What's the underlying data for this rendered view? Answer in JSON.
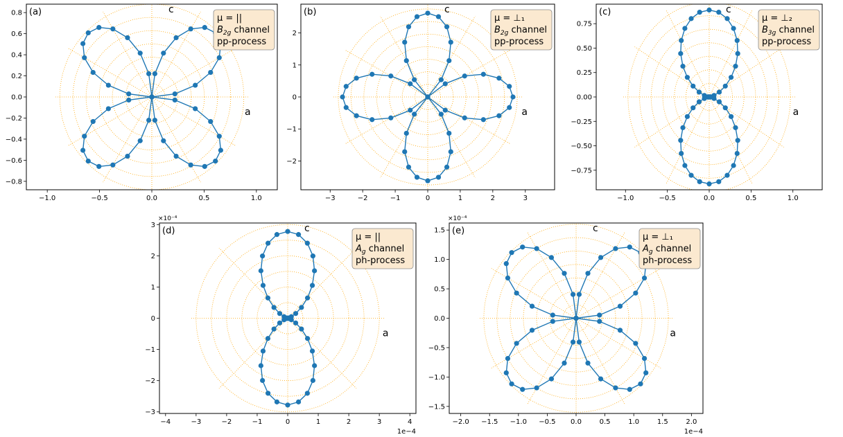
{
  "chart_data": [
    {
      "panel": "(a)",
      "type": "scatter",
      "mode": "polar-pattern",
      "xlim": [
        -1.2,
        1.2
      ],
      "ylim": [
        -0.88,
        0.88
      ],
      "xticks": [
        -1.0,
        -0.5,
        0.0,
        0.5,
        1.0
      ],
      "xtick_labels": [
        "−1.0",
        "−0.5",
        "0.0",
        "0.5",
        "1.0"
      ],
      "yticks": [
        -0.8,
        -0.6,
        -0.4,
        -0.2,
        0.0,
        0.2,
        0.4,
        0.6,
        0.8
      ],
      "ytick_labels": [
        "−0.8",
        "−0.6",
        "−0.4",
        "−0.2",
        "0.0",
        "0.2",
        "0.4",
        "0.6",
        "0.8"
      ],
      "rmax": 0.88,
      "circles": 7,
      "spokes": 12,
      "pattern": {
        "form": "four_lobe_diag",
        "amp": 0.86
      },
      "label_c": "c",
      "label_a": "a",
      "legend": {
        "line1": "μ = ||",
        "line2_sym": "B",
        "line2_sub": "2g",
        "line2_rest": " channel",
        "line3": "pp-process"
      },
      "exponent": "",
      "xoffset": ""
    },
    {
      "panel": "(b)",
      "type": "scatter",
      "mode": "polar-pattern",
      "xlim": [
        -3.9,
        3.9
      ],
      "ylim": [
        -2.9,
        2.9
      ],
      "xticks": [
        -3,
        -2,
        -1,
        0,
        1,
        2,
        3
      ],
      "xtick_labels": [
        "−3",
        "−2",
        "−1",
        "0",
        "1",
        "2",
        "3"
      ],
      "yticks": [
        -2,
        -1,
        0,
        1,
        2
      ],
      "ytick_labels": [
        "−2",
        "−1",
        "0",
        "1",
        "2"
      ],
      "rmax": 2.75,
      "circles": 7,
      "spokes": 12,
      "pattern": {
        "form": "four_lobe_axis",
        "amp": 2.62
      },
      "label_c": "c",
      "label_a": "a",
      "legend": {
        "line1": "μ = ⊥₁",
        "line2_sym": "B",
        "line2_sub": "2g",
        "line2_rest": " channel",
        "line3": "pp-process"
      },
      "exponent": "",
      "xoffset": ""
    },
    {
      "panel": "(c)",
      "type": "scatter",
      "mode": "polar-pattern",
      "xlim": [
        -1.35,
        1.35
      ],
      "ylim": [
        -0.95,
        0.95
      ],
      "xticks": [
        -1.0,
        -0.5,
        0.0,
        0.5,
        1.0
      ],
      "xtick_labels": [
        "−1.0",
        "−0.5",
        "0.0",
        "0.5",
        "1.0"
      ],
      "yticks": [
        -0.75,
        -0.5,
        -0.25,
        0.0,
        0.25,
        0.5,
        0.75
      ],
      "ytick_labels": [
        "−0.75",
        "−0.50",
        "−0.25",
        "0.00",
        "0.25",
        "0.50",
        "0.75"
      ],
      "rmax": 0.97,
      "circles": 7,
      "spokes": 12,
      "pattern": {
        "form": "two_lobe_vertical",
        "amp": 0.89
      },
      "label_c": "c",
      "label_a": "a",
      "legend": {
        "line1": "μ = ⊥₂",
        "line2_sym": "B",
        "line2_sub": "3g",
        "line2_rest": " channel",
        "line3": "pp-process"
      },
      "exponent": "",
      "xoffset": ""
    },
    {
      "panel": "(d)",
      "type": "scatter",
      "mode": "polar-pattern",
      "xlim": [
        -4.2,
        4.2
      ],
      "ylim": [
        -3.05,
        3.05
      ],
      "xticks": [
        -4,
        -3,
        -2,
        -1,
        0,
        1,
        2,
        3,
        4
      ],
      "xtick_labels": [
        "−4",
        "−3",
        "−2",
        "−1",
        "0",
        "1",
        "2",
        "3",
        "4"
      ],
      "yticks": [
        -3,
        -2,
        -1,
        0,
        1,
        2,
        3
      ],
      "ytick_labels": [
        "−3",
        "−2",
        "−1",
        "0",
        "1",
        "2",
        "3"
      ],
      "rmax": 3.0,
      "circles": 6,
      "spokes": 8,
      "pattern": {
        "form": "two_lobe_vertical_narrow",
        "amp": 2.78
      },
      "label_c": "c",
      "label_a": "a",
      "legend": {
        "line1": "μ = ||",
        "line2_sym": "A",
        "line2_sub": "g",
        "line2_rest": " channel",
        "line3": "ph-process"
      },
      "exponent": "×10⁻⁴",
      "xoffset": "1e−4"
    },
    {
      "panel": "(e)",
      "type": "scatter",
      "mode": "polar-pattern",
      "xlim": [
        -2.2,
        2.2
      ],
      "ylim": [
        -1.62,
        1.62
      ],
      "xticks": [
        -2.0,
        -1.5,
        -1.0,
        -0.5,
        0.0,
        0.5,
        1.0,
        1.5,
        2.0
      ],
      "xtick_labels": [
        "−2.0",
        "−1.5",
        "−1.0",
        "−0.5",
        "0.0",
        "0.5",
        "1.0",
        "1.5",
        "2.0"
      ],
      "yticks": [
        -1.5,
        -1.0,
        -0.5,
        0.0,
        0.5,
        1.0,
        1.5
      ],
      "ytick_labels": [
        "−1.5",
        "−1.0",
        "−0.5",
        "0.0",
        "0.5",
        "1.0",
        "1.5"
      ],
      "rmax": 1.6,
      "circles": 7,
      "spokes": 12,
      "pattern": {
        "form": "four_lobe_diag",
        "amp": 1.58
      },
      "label_c": "c",
      "label_a": "a",
      "legend": {
        "line1": "μ = ⊥₁",
        "line2_sym": "A",
        "line2_sub": "g",
        "line2_rest": " channel",
        "line3": "ph-process"
      },
      "exponent": "×10⁻⁴",
      "xoffset": "1e−4"
    }
  ],
  "colors": {
    "series": "#1f77b4",
    "grid": "#ffa500",
    "legend_bg": "#fbe9d0",
    "legend_edge": "#8c8c8c"
  }
}
